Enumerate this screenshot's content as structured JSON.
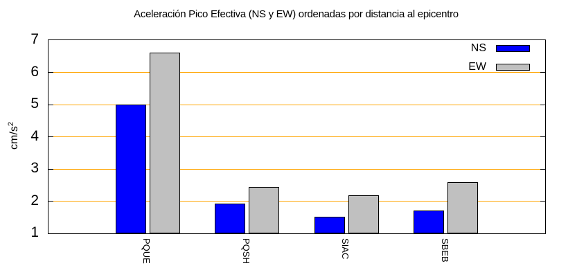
{
  "title": "Aceleración Pico Efectiva (NS y EW) ordenadas por distancia al epicentro",
  "chart_data": {
    "type": "bar",
    "title": "Aceleración Pico Efectiva (NS y EW) ordenadas por distancia al epicentro",
    "xlabel": "",
    "ylabel": "cm/s²",
    "ylabel_base": "cm/s",
    "ylabel_sup": "2",
    "categories": [
      "PQUE",
      "PQSH",
      "SIAC",
      "SBEB"
    ],
    "series": [
      {
        "name": "NS",
        "color": "#0000ff",
        "values": [
          5.0,
          1.93,
          1.51,
          1.7
        ]
      },
      {
        "name": "EW",
        "color": "#c0c0c0",
        "values": [
          6.62,
          2.45,
          2.18,
          2.59
        ]
      }
    ],
    "ylim": [
      1,
      7
    ],
    "yticks": [
      "1",
      "2",
      "3",
      "4",
      "5",
      "6",
      "7"
    ],
    "grid": true,
    "grid_color": "#ffa500",
    "border_color": "#000000",
    "legend_position": "top-right"
  }
}
